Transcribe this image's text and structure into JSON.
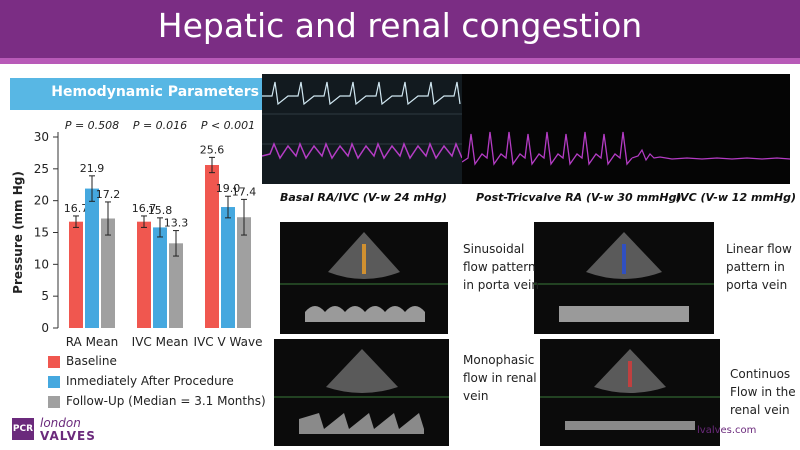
{
  "slide": {
    "title": "Hepatic and renal congestion",
    "website": "lvalves.com"
  },
  "logo": {
    "box": "PCR",
    "line1": "london",
    "line2": "VALVES"
  },
  "chart": {
    "banner": "Hemodynamic Parameters"
  },
  "colors": {
    "header": "#7b2d84",
    "banner": "#58b7e4",
    "baseline": "#f0574f",
    "immediate": "#45a8df",
    "followup": "#a0a0a0",
    "waveform": "#b43cc4"
  },
  "chart_data": {
    "type": "bar",
    "categories": [
      "RA Mean",
      "IVC Mean",
      "IVC V Wave"
    ],
    "series": [
      {
        "name": "Baseline",
        "values": [
          16.7,
          16.7,
          25.6
        ],
        "errors": [
          0.9,
          0.9,
          1.2
        ]
      },
      {
        "name": "Inmediately After Procedure",
        "values": [
          21.9,
          15.8,
          19.0
        ],
        "errors": [
          2.0,
          1.5,
          1.7
        ]
      },
      {
        "name": "Follow-Up (Median = 3.1 Months)",
        "values": [
          17.2,
          13.3,
          17.4
        ],
        "errors": [
          2.6,
          2.0,
          2.8
        ]
      }
    ],
    "value_labels": [
      [
        "16.7",
        "21.9",
        "17.2"
      ],
      [
        "16.7",
        "15.8",
        "13.3"
      ],
      [
        "25.6",
        "19.0",
        "17.4"
      ]
    ],
    "p_values": [
      "P = 0.508",
      "P = 0.016",
      "P < 0.001"
    ],
    "ylabel": "Pressure (mm Hg)",
    "ylim": [
      0,
      30
    ],
    "yticks": [
      0,
      5,
      10,
      15,
      20,
      25,
      30
    ],
    "legend_position": "bottom"
  },
  "waveforms": {
    "captions": [
      "Basal RA/IVC (V-w 24 mHg)",
      "Post-Tricvalve RA (V-w 30 mmHg)",
      "IVC (V-w 12 mmHg)"
    ]
  },
  "ultrasound": {
    "labels": [
      [
        "Sinusoidal",
        "flow pattern",
        "in porta vein"
      ],
      [
        "Linear flow",
        "pattern in",
        "porta vein"
      ],
      [
        "Monophasic",
        "flow in renal",
        "vein"
      ],
      [
        "Continuos",
        "Flow in the",
        "renal vein"
      ]
    ]
  }
}
